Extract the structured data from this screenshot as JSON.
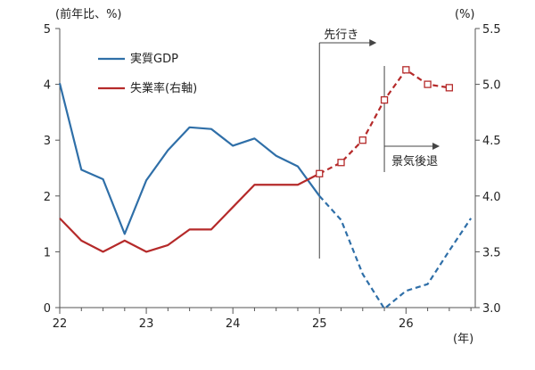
{
  "chart_data": {
    "type": "line",
    "y_left_unit": "(前年比、%)",
    "y_right_unit": "(%)",
    "x_unit": "(年)",
    "x_ticks": [
      "22",
      "23",
      "24",
      "25",
      "26"
    ],
    "x_range": [
      22,
      26.8
    ],
    "y_left_range": [
      0,
      5
    ],
    "y_left_ticks": [
      "0",
      "1",
      "2",
      "3",
      "4",
      "5"
    ],
    "y_right_range": [
      3.0,
      5.5
    ],
    "y_right_ticks": [
      "3.0",
      "3.5",
      "4.0",
      "4.5",
      "5.0",
      "5.5"
    ],
    "forecast_start": 25,
    "recession_start": 25.75,
    "annotations": {
      "forecast": "先行き",
      "recession": "景気後退"
    },
    "series": [
      {
        "name": "実質GDP",
        "axis": "left",
        "color": "#2f6fa8",
        "x": [
          22,
          22.25,
          22.5,
          22.75,
          23,
          23.25,
          23.5,
          23.75,
          24,
          24.25,
          24.5,
          24.75,
          25,
          25.25,
          25.5,
          25.75,
          26,
          26.25,
          26.5,
          26.75
        ],
        "y": [
          4.02,
          2.47,
          2.3,
          1.32,
          2.28,
          2.82,
          3.23,
          3.2,
          2.9,
          3.03,
          2.72,
          2.53,
          2.0,
          1.57,
          0.6,
          -0.02,
          0.3,
          0.42,
          1.02,
          1.6
        ]
      },
      {
        "name": "失業率(右軸)",
        "axis": "right",
        "color": "#b52a2a",
        "marker": "open-square-forecast",
        "x": [
          22,
          22.25,
          22.5,
          22.75,
          23,
          23.25,
          23.5,
          23.75,
          24,
          24.25,
          24.5,
          24.75,
          25,
          25.25,
          25.5,
          25.75,
          26,
          26.25,
          26.5
        ],
        "y": [
          3.8,
          3.6,
          3.5,
          3.6,
          3.5,
          3.56,
          3.7,
          3.7,
          3.9,
          4.1,
          4.1,
          4.1,
          4.2,
          4.3,
          4.5,
          4.86,
          5.13,
          5.0,
          4.97
        ]
      }
    ]
  }
}
